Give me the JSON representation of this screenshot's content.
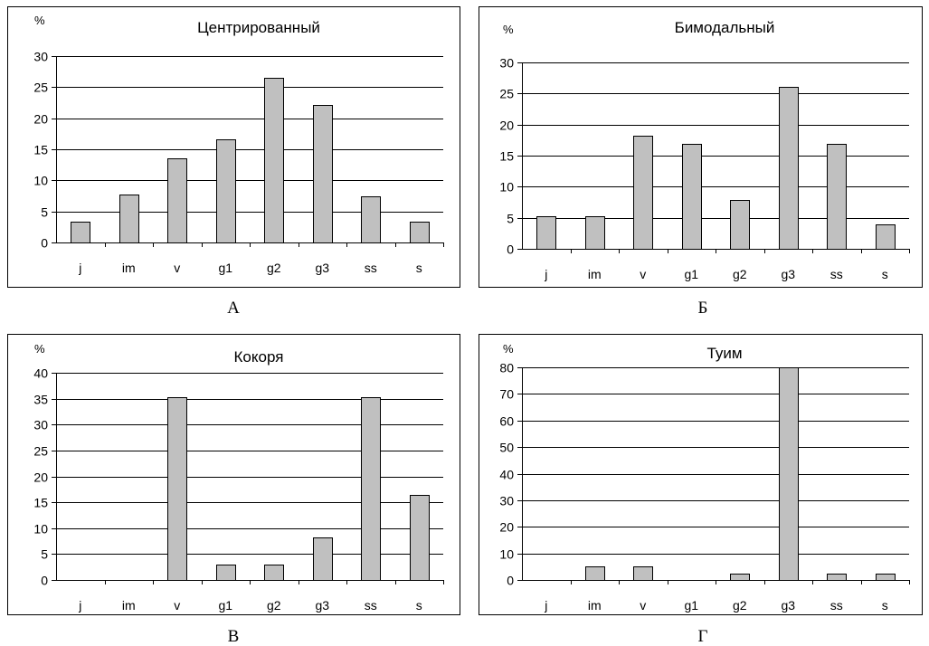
{
  "colors": {
    "bar_fill": "#c0c0c0",
    "bar_stroke": "#000000",
    "grid": "#000000"
  },
  "chart_data": [
    {
      "type": "bar",
      "title": "Центрированный",
      "ylabel": "%",
      "caption": "А",
      "categories": [
        "j",
        "im",
        "v",
        "g1",
        "g2",
        "g3",
        "ss",
        "s"
      ],
      "values": [
        3.3,
        7.7,
        13.5,
        16.6,
        26.5,
        22.1,
        7.5,
        3.3
      ],
      "ylim": [
        0,
        30
      ],
      "yticks": [
        0,
        5,
        10,
        15,
        20,
        25,
        30
      ],
      "grid": true,
      "legend": "none"
    },
    {
      "type": "bar",
      "title": "Бимодальный",
      "ylabel": "%",
      "caption": "Б",
      "categories": [
        "j",
        "im",
        "v",
        "g1",
        "g2",
        "g3",
        "ss",
        "s"
      ],
      "values": [
        5.2,
        5.2,
        18.2,
        16.9,
        7.8,
        26.0,
        16.9,
        3.9
      ],
      "ylim": [
        0,
        30
      ],
      "yticks": [
        0,
        5,
        10,
        15,
        20,
        25,
        30
      ],
      "grid": true,
      "legend": "none"
    },
    {
      "type": "bar",
      "title": "Кокоря",
      "ylabel": "%",
      "caption": "В",
      "categories": [
        "j",
        "im",
        "v",
        "g1",
        "g2",
        "g3",
        "ss",
        "s"
      ],
      "values": [
        0,
        0,
        35.3,
        2.9,
        2.9,
        8.2,
        35.3,
        16.4
      ],
      "ylim": [
        0,
        40
      ],
      "yticks": [
        0,
        5,
        10,
        15,
        20,
        25,
        30,
        35,
        40
      ],
      "grid": true,
      "legend": "none"
    },
    {
      "type": "bar",
      "title": "Туим",
      "ylabel": "%",
      "caption": "Г",
      "categories": [
        "j",
        "im",
        "v",
        "g1",
        "g2",
        "g3",
        "ss",
        "s"
      ],
      "values": [
        0,
        5,
        5,
        0,
        2.4,
        85,
        2.4,
        2.4
      ],
      "ylim": [
        0,
        80
      ],
      "yticks": [
        0,
        10,
        20,
        30,
        40,
        50,
        60,
        70,
        80
      ],
      "grid": true,
      "legend": "none"
    }
  ]
}
